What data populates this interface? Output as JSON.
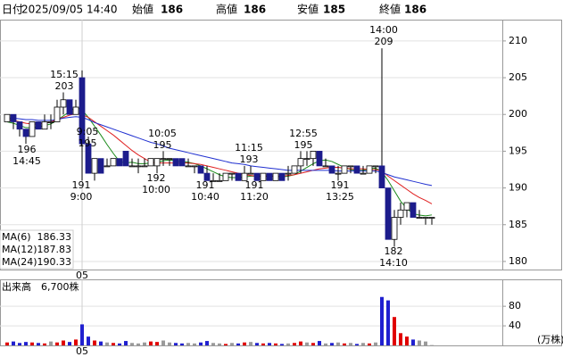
{
  "header": {
    "date_label": "日付",
    "date": "2025/09/05 14:40",
    "open_label": "始値",
    "high_label": "高値",
    "low_label": "安値",
    "close_label": "終値"
  },
  "chart_data": [
    {
      "type": "candlestick",
      "categories": [
        null,
        null,
        null,
        null,
        null,
        null,
        null,
        null,
        null,
        null,
        null,
        null,
        "05",
        null,
        null,
        null,
        null,
        null,
        null,
        null,
        null,
        null,
        null,
        null,
        null,
        null,
        null,
        null,
        null,
        null,
        null,
        null,
        null,
        null,
        null,
        null,
        null,
        null,
        null,
        null,
        null,
        null,
        null,
        null,
        null,
        null,
        null,
        null,
        null,
        null,
        null,
        null,
        null,
        null,
        null,
        null,
        null,
        null,
        null,
        null,
        null,
        null,
        null,
        null,
        null,
        null,
        null,
        null,
        null
      ],
      "open": [
        199,
        200,
        199,
        198,
        197,
        199,
        198,
        199,
        199,
        201,
        202,
        200,
        205,
        196,
        192,
        194,
        193,
        193,
        194,
        195,
        193,
        193,
        193,
        193,
        193,
        194,
        194,
        194,
        194,
        193,
        193,
        193,
        192,
        191,
        191,
        191,
        192,
        192,
        191,
        192,
        192,
        191,
        192,
        191,
        192,
        192,
        192,
        193,
        194,
        194,
        195,
        193,
        193,
        192,
        192,
        193,
        193,
        192,
        192,
        193,
        193,
        190,
        183,
        186,
        187,
        188,
        186,
        186,
        186
      ],
      "high": [
        200,
        200,
        199,
        198,
        199,
        199,
        200,
        200,
        202,
        203,
        202,
        202,
        206,
        197,
        194,
        194,
        194,
        194,
        194,
        195,
        194,
        194,
        194,
        194,
        194,
        195,
        194,
        194,
        194,
        194,
        193,
        193,
        193,
        192,
        192,
        192,
        192,
        192,
        193,
        193,
        192,
        192,
        192,
        192,
        192,
        193,
        193,
        195,
        195,
        195,
        195,
        194,
        193,
        193,
        193,
        193,
        193,
        193,
        193,
        193,
        209,
        190,
        187,
        188,
        188,
        188,
        187,
        186,
        186
      ],
      "low": [
        199,
        198,
        197,
        196,
        197,
        198,
        198,
        198,
        199,
        200,
        200,
        200,
        191,
        192,
        191,
        192,
        193,
        193,
        193,
        193,
        193,
        192,
        193,
        193,
        192,
        193,
        193,
        193,
        193,
        193,
        192,
        192,
        191,
        191,
        191,
        191,
        191,
        191,
        191,
        192,
        191,
        191,
        191,
        191,
        191,
        191,
        192,
        192,
        193,
        193,
        193,
        193,
        192,
        191,
        192,
        192,
        192,
        192,
        192,
        192,
        190,
        183,
        182,
        185,
        186,
        186,
        186,
        185,
        185
      ],
      "close": [
        200,
        199,
        198,
        197,
        199,
        198,
        199,
        199,
        201,
        202,
        200,
        201,
        196,
        192,
        194,
        192,
        193,
        194,
        193,
        193,
        193,
        193,
        193,
        194,
        194,
        194,
        194,
        193,
        193,
        193,
        193,
        192,
        191,
        191,
        191,
        192,
        192,
        191,
        192,
        192,
        191,
        192,
        191,
        192,
        191,
        192,
        193,
        194,
        194,
        195,
        193,
        193,
        192,
        192,
        193,
        193,
        192,
        192,
        193,
        193,
        190,
        183,
        186,
        187,
        188,
        186,
        186,
        186,
        186
      ],
      "up_color": "#ffffff",
      "down_color": "#1c1c8c",
      "series": [
        {
          "name": "MA(6)",
          "color": "#1a8a1a",
          "values": [
            199.0,
            198.8,
            198.5,
            198.2,
            198.2,
            198.3,
            198.5,
            198.7,
            199.2,
            199.8,
            200.4,
            201.0,
            200.6,
            199.6,
            198.4,
            197.2,
            195.9,
            194.7,
            193.6,
            193.4,
            193.5,
            193.3,
            193.3,
            193.4,
            193.5,
            193.7,
            193.8,
            193.7,
            193.6,
            193.5,
            193.3,
            193.0,
            192.6,
            192.2,
            191.8,
            191.5,
            191.4,
            191.4,
            191.5,
            191.6,
            191.6,
            191.6,
            191.6,
            191.6,
            191.5,
            191.6,
            191.8,
            192.3,
            192.8,
            193.3,
            193.7,
            193.8,
            193.6,
            193.2,
            192.8,
            192.5,
            192.4,
            192.4,
            192.6,
            192.7,
            192.2,
            191.0,
            189.6,
            188.2,
            187.2,
            186.5,
            186.3,
            186.2,
            186.33
          ]
        },
        {
          "name": "MA(12)",
          "color": "#e02020",
          "values": [
            199.3,
            199.2,
            199.0,
            198.8,
            198.7,
            198.7,
            198.8,
            199.0,
            199.3,
            199.6,
            199.9,
            200.1,
            200.0,
            199.6,
            199.0,
            198.4,
            197.8,
            197.2,
            196.5,
            195.8,
            195.1,
            194.5,
            194.0,
            193.5,
            193.4,
            193.4,
            193.4,
            193.4,
            193.4,
            193.4,
            193.3,
            193.2,
            193.0,
            192.8,
            192.6,
            192.4,
            192.2,
            192.0,
            191.8,
            191.7,
            191.6,
            191.6,
            191.6,
            191.6,
            191.6,
            191.7,
            191.8,
            192.0,
            192.2,
            192.4,
            192.6,
            192.7,
            192.8,
            192.8,
            192.7,
            192.6,
            192.6,
            192.6,
            192.5,
            192.5,
            192.3,
            191.6,
            191.0,
            190.4,
            189.8,
            189.2,
            188.7,
            188.3,
            187.83
          ]
        },
        {
          "name": "MA(24)",
          "color": "#2030d0",
          "values": [
            199.5,
            199.5,
            199.4,
            199.3,
            199.3,
            199.2,
            199.2,
            199.2,
            199.3,
            199.5,
            199.6,
            199.7,
            199.6,
            199.3,
            198.9,
            198.6,
            198.3,
            198.0,
            197.7,
            197.4,
            197.1,
            196.8,
            196.5,
            196.2,
            196.0,
            195.7,
            195.4,
            195.2,
            195.0,
            194.8,
            194.6,
            194.4,
            194.2,
            194.0,
            193.8,
            193.6,
            193.4,
            193.3,
            193.2,
            193.0,
            192.9,
            192.8,
            192.7,
            192.6,
            192.5,
            192.4,
            192.4,
            192.4,
            192.4,
            192.4,
            192.4,
            192.4,
            192.4,
            192.3,
            192.3,
            192.3,
            192.3,
            192.3,
            192.3,
            192.3,
            192.1,
            191.8,
            191.5,
            191.3,
            191.1,
            190.9,
            190.7,
            190.5,
            190.33
          ]
        }
      ],
      "annotations": [
        [
          "15:15",
          203
        ],
        [
          196,
          "14:45"
        ],
        [
          "9:05",
          195
        ],
        [
          191,
          "9:00"
        ],
        [
          "10:05",
          195
        ],
        [
          192,
          "10:00"
        ],
        [
          191,
          "10:40"
        ],
        [
          "11:15",
          193
        ],
        [
          191,
          "11:20"
        ],
        [
          "12:55",
          195
        ],
        [
          191,
          "13:25"
        ],
        [
          "14:00",
          209
        ],
        [
          182,
          "14:10"
        ]
      ],
      "ylim": [
        178.9,
        212.9
      ],
      "yticks": [
        180,
        185,
        190,
        195,
        200,
        205,
        210
      ],
      "grid": true
    },
    {
      "type": "bar",
      "title": "出来高",
      "latest_label": "6,700株",
      "unit": "(万株)",
      "categories": [
        null,
        null,
        null,
        null,
        null,
        null,
        null,
        null,
        null,
        null,
        null,
        null,
        "05",
        null,
        null,
        null,
        null,
        null,
        null,
        null,
        null,
        null,
        null,
        null,
        null,
        null,
        null,
        null,
        null,
        null,
        null,
        null,
        null,
        null,
        null,
        null,
        null,
        null,
        null,
        null,
        null,
        null,
        null,
        null,
        null,
        null,
        null,
        null,
        null,
        null,
        null,
        null,
        null,
        null,
        null,
        null,
        null,
        null,
        null,
        null,
        null,
        null,
        null,
        null,
        null,
        null,
        null,
        null,
        null
      ],
      "values": [
        6,
        8,
        5,
        7,
        6,
        5,
        4,
        8,
        6,
        10,
        7,
        12,
        43,
        18,
        10,
        8,
        6,
        5,
        4,
        9,
        5,
        4,
        6,
        8,
        7,
        10,
        6,
        5,
        4,
        5,
        4,
        6,
        9,
        5,
        4,
        3,
        5,
        4,
        6,
        7,
        5,
        4,
        5,
        4,
        3,
        4,
        5,
        8,
        6,
        5,
        9,
        4,
        5,
        6,
        4,
        5,
        3,
        5,
        4,
        6,
        99,
        92,
        58,
        25,
        18,
        12,
        10,
        8,
        0.67
      ],
      "up_color": "#e00000",
      "down_color": "#2020d0",
      "flat_color": "#9a9a9a",
      "ylim": [
        0,
        135
      ],
      "yticks": [
        40,
        80
      ],
      "grid": true
    }
  ]
}
